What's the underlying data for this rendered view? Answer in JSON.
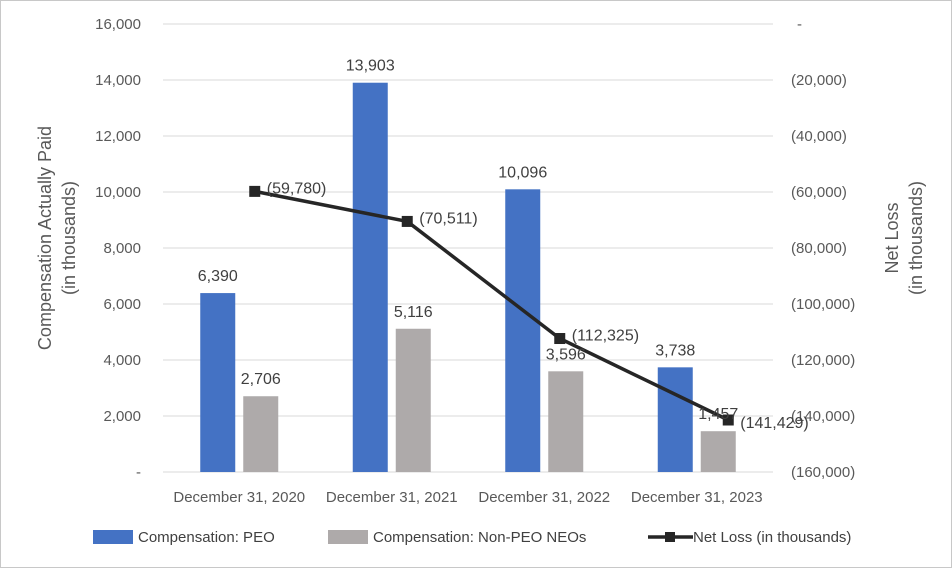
{
  "chart_data": {
    "type": "bar+line",
    "categories": [
      "December 31, 2020",
      "December 31, 2021",
      "December 31, 2022",
      "December 31, 2023"
    ],
    "series": [
      {
        "name": "Compensation: PEO",
        "type": "bar",
        "axis": "left",
        "color": "#4472c4",
        "values": [
          6390,
          13903,
          10096,
          3738
        ],
        "labels": [
          "6,390",
          "13,903",
          "10,096",
          "3,738"
        ]
      },
      {
        "name": "Compensation: Non-PEO NEOs",
        "type": "bar",
        "axis": "left",
        "color": "#aeaaaa",
        "values": [
          2706,
          5116,
          3596,
          1457
        ],
        "labels": [
          "2,706",
          "5,116",
          "3,596",
          "1,457"
        ]
      },
      {
        "name": "Net Loss (in thousands)",
        "type": "line",
        "axis": "right",
        "color": "#262626",
        "values": [
          -59780,
          -70511,
          -112325,
          -141429
        ],
        "labels": [
          "(59,780)",
          "(70,511)",
          "(112,325)",
          "(141,429)"
        ]
      }
    ],
    "y_left": {
      "title_lines": [
        "Compensation Actually Paid",
        "(in thousands)"
      ],
      "range": [
        0,
        16000
      ],
      "ticks": [
        0,
        2000,
        4000,
        6000,
        8000,
        10000,
        12000,
        14000,
        16000
      ],
      "tick_labels": [
        "-",
        "2,000",
        "4,000",
        "6,000",
        "8,000",
        "10,000",
        "12,000",
        "14,000",
        "16,000"
      ]
    },
    "y_right": {
      "title_lines": [
        "Net Loss",
        "(in thousands)"
      ],
      "range": [
        -160000,
        0
      ],
      "ticks": [
        0,
        -20000,
        -40000,
        -60000,
        -80000,
        -100000,
        -120000,
        -140000,
        -160000
      ],
      "tick_labels": [
        "-",
        "(20,000)",
        "(40,000)",
        "(60,000)",
        "(80,000)",
        "(100,000)",
        "(120,000)",
        "(140,000)",
        "(160,000)"
      ]
    },
    "grid": true,
    "legend_position": "bottom",
    "legend": [
      "Compensation: PEO",
      "Compensation: Non-PEO NEOs",
      "Net Loss (in thousands)"
    ]
  }
}
